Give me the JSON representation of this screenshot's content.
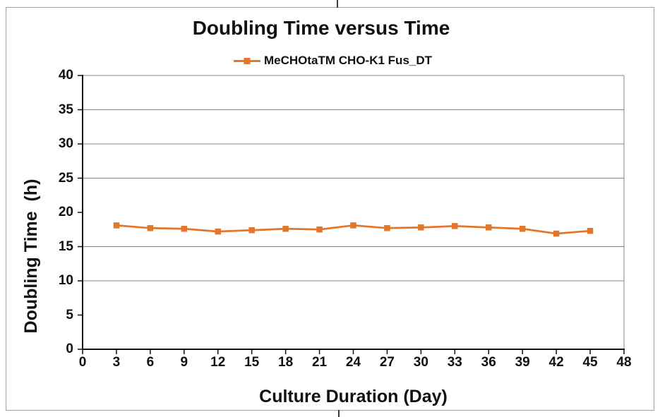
{
  "chart": {
    "title": "Doubling Time versus Time",
    "legend": {
      "series_label": "MeCHOtaTM CHO-K1 Fus_DT"
    },
    "x_axis_title": "Culture Duration (Day)",
    "y_axis_title": "Doubling Time  (h)"
  },
  "chart_data": {
    "type": "line",
    "title": "Doubling Time versus Time",
    "xlabel": "Culture Duration (Day)",
    "ylabel": "Doubling Time (h)",
    "legend_position": "top-center",
    "grid": "horizontal-only",
    "gridline_values": [
      10,
      15,
      25,
      30,
      35
    ],
    "xlim": [
      0,
      48
    ],
    "ylim": [
      0,
      40
    ],
    "x_ticks": [
      0,
      3,
      6,
      9,
      12,
      15,
      18,
      21,
      24,
      27,
      30,
      33,
      36,
      39,
      42,
      45,
      48
    ],
    "y_ticks": [
      0,
      5,
      10,
      15,
      20,
      25,
      30,
      35,
      40
    ],
    "series": [
      {
        "name": "MeCHOtaTM CHO-K1 Fus_DT",
        "marker": "square",
        "x": [
          3,
          6,
          9,
          12,
          15,
          18,
          21,
          24,
          27,
          30,
          33,
          36,
          39,
          42,
          45
        ],
        "y": [
          18.1,
          17.7,
          17.6,
          17.2,
          17.4,
          17.6,
          17.5,
          18.1,
          17.7,
          17.8,
          18.0,
          17.8,
          17.6,
          16.9,
          17.3
        ]
      }
    ]
  },
  "colors": {
    "accent": "#E2762B",
    "gridline": "#858585",
    "frame": "#858585",
    "axis": "#111111",
    "text": "#111111",
    "border": "#A3A39D"
  }
}
